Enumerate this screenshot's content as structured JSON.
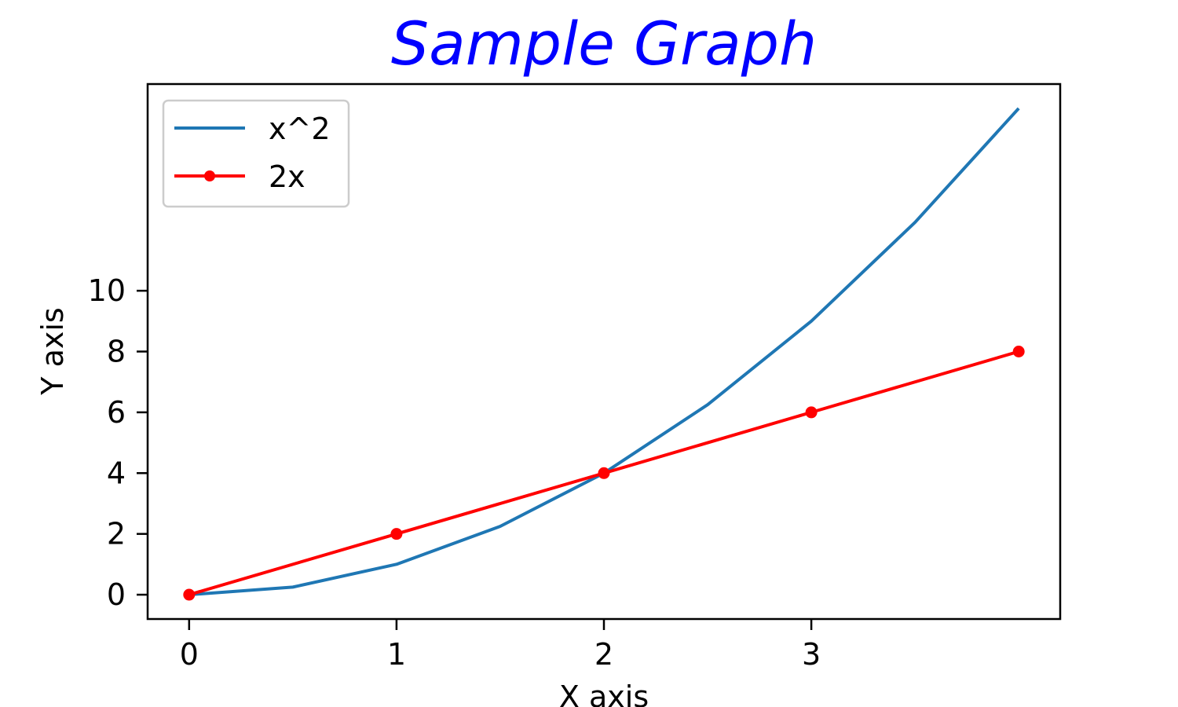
{
  "chart_data": {
    "type": "line",
    "title": "Sample Graph",
    "title_color": "#0000ff",
    "xlabel": "X axis",
    "ylabel": "Y axis",
    "xlim": [
      -0.2,
      4.2
    ],
    "ylim": [
      -0.8,
      16.8
    ],
    "x_ticks": [
      0,
      1,
      2,
      3
    ],
    "y_ticks": [
      0,
      2,
      4,
      6,
      8,
      10
    ],
    "grid": false,
    "legend_position": "top-left",
    "series": [
      {
        "name": "x^2",
        "color": "#1f77b4",
        "marker": "none",
        "x": [
          0,
          0.5,
          1,
          1.5,
          2,
          2.5,
          3,
          3.5,
          4
        ],
        "y": [
          0,
          0.25,
          1,
          2.25,
          4,
          6.25,
          9,
          12.25,
          16
        ]
      },
      {
        "name": "2x",
        "color": "#ff0000",
        "marker": "circle",
        "x": [
          0,
          1,
          2,
          3,
          4
        ],
        "y": [
          0,
          2,
          4,
          6,
          8
        ]
      }
    ]
  }
}
